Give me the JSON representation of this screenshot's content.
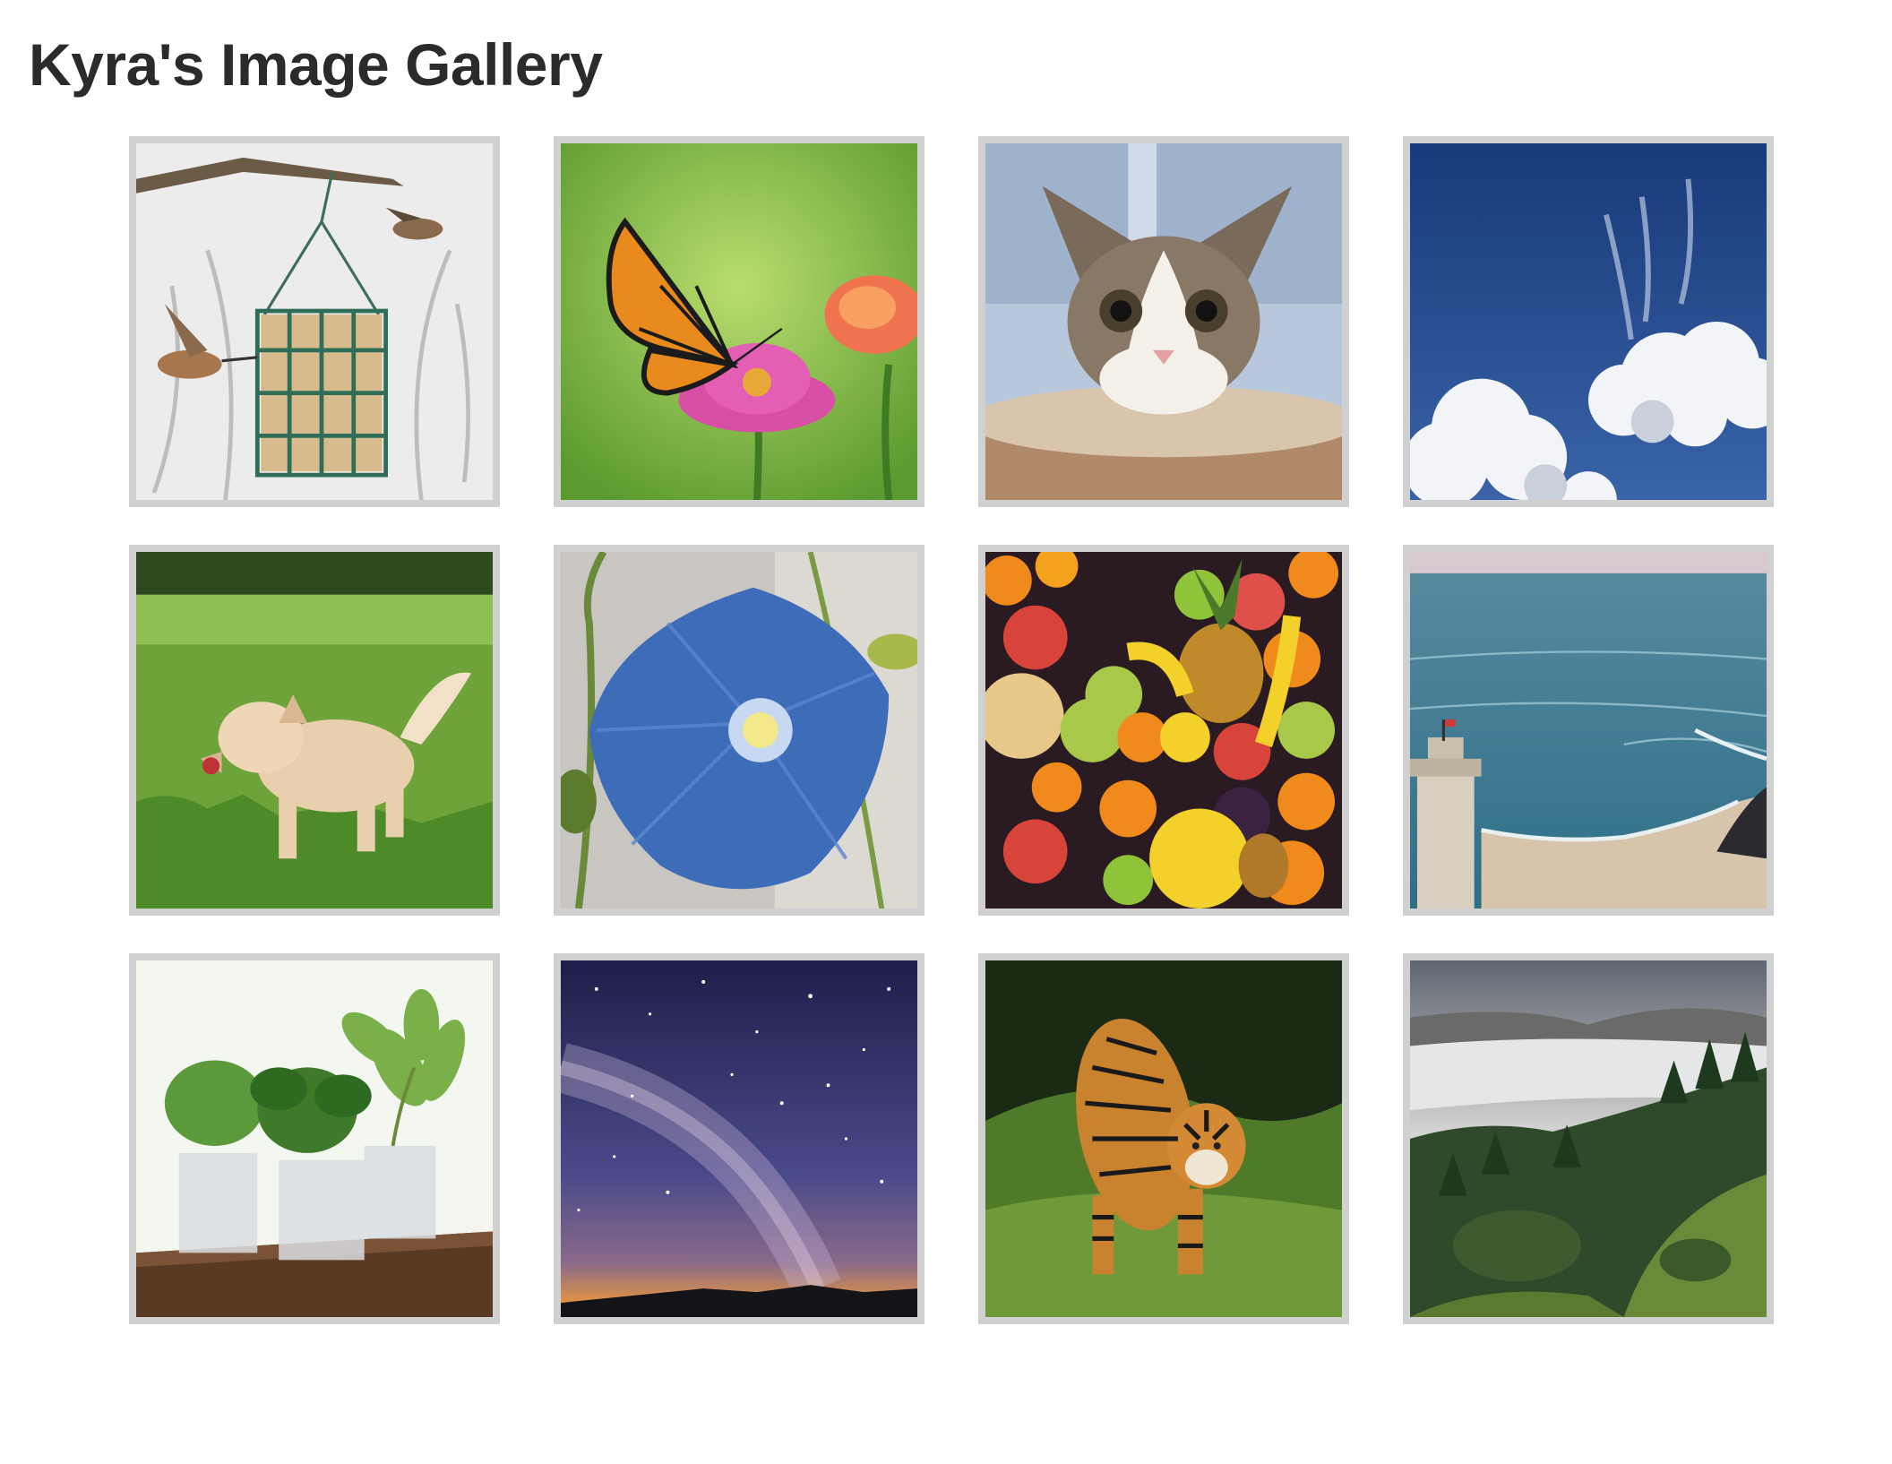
{
  "page": {
    "title": "Kyra's Image Gallery"
  },
  "gallery": {
    "images": [
      {
        "subject": "bird-feeder-hummingbird"
      },
      {
        "subject": "monarch-butterfly-zinnia"
      },
      {
        "subject": "kitten"
      },
      {
        "subject": "blue-sky-clouds"
      },
      {
        "subject": "golden-retriever-running"
      },
      {
        "subject": "blue-morning-glory"
      },
      {
        "subject": "fruit-pile"
      },
      {
        "subject": "lighthouse-ocean"
      },
      {
        "subject": "potted-plants"
      },
      {
        "subject": "milky-way-night-sky"
      },
      {
        "subject": "tiger-walking"
      },
      {
        "subject": "foggy-forest-hills"
      }
    ]
  },
  "colors": {
    "frame": "#d0d0d0",
    "title_text": "#2b2b2b",
    "background": "#ffffff"
  }
}
